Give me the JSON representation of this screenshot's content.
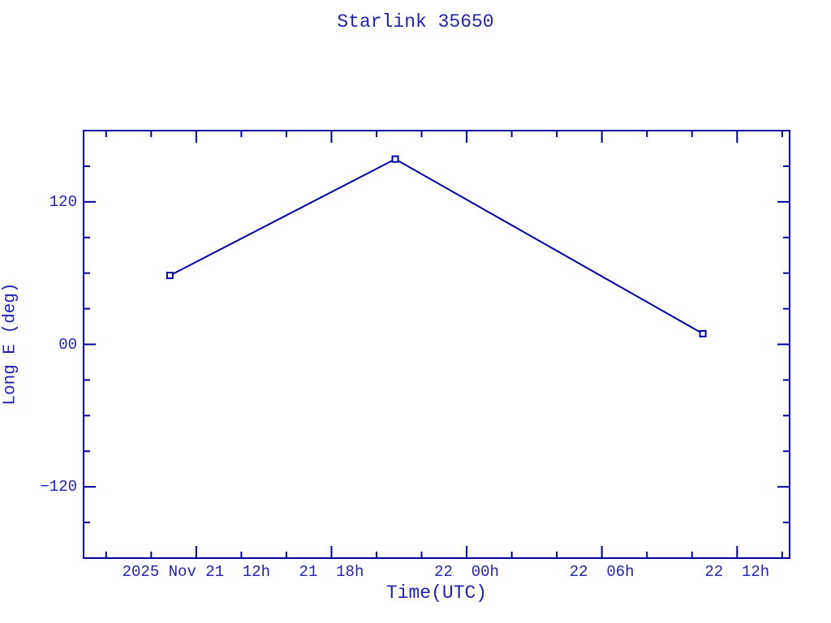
{
  "chart_data": {
    "type": "line",
    "title": "Starlink 35650",
    "xlabel": "Time(UTC)",
    "ylabel": "Long E (deg)",
    "grid": false,
    "legend": false,
    "colors": {
      "background": "#ffffff",
      "line": "#0000A0",
      "text": "#2222B2",
      "marker_fill": "#ffffff"
    },
    "x_axis": {
      "epoch": "hours since 2025-11-21 00:00 UTC",
      "min": 7.0,
      "max": 38.33,
      "major_ticks": [
        {
          "value": 12,
          "label": "2025 Nov 21  12h"
        },
        {
          "value": 18,
          "label": "21  18h"
        },
        {
          "value": 24,
          "label": "22  00h"
        },
        {
          "value": 30,
          "label": "22  06h"
        },
        {
          "value": 36,
          "label": "22  12h"
        }
      ],
      "minor_ticks": [
        8,
        10,
        14,
        16,
        20,
        22,
        26,
        28,
        32,
        34,
        38
      ]
    },
    "y_axis": {
      "min": -180,
      "max": 180,
      "major_ticks": [
        {
          "value": 120,
          "label": "120"
        },
        {
          "value": 0,
          "label": "00"
        },
        {
          "value": -120,
          "label": "−120"
        }
      ],
      "minor_ticks": [
        150,
        90,
        60,
        30,
        -30,
        -60,
        -90,
        -150
      ]
    },
    "series": [
      {
        "name": "Long E",
        "marker": "open-square",
        "points": [
          {
            "x_hours": 10.83,
            "time_utc": "2025-11-21 10:50",
            "y_deg": 58
          },
          {
            "x_hours": 20.83,
            "time_utc": "2025-11-21 20:50",
            "y_deg": 156
          },
          {
            "x_hours": 34.48,
            "time_utc": "2025-11-22 10:29",
            "y_deg": 9
          }
        ]
      }
    ]
  }
}
